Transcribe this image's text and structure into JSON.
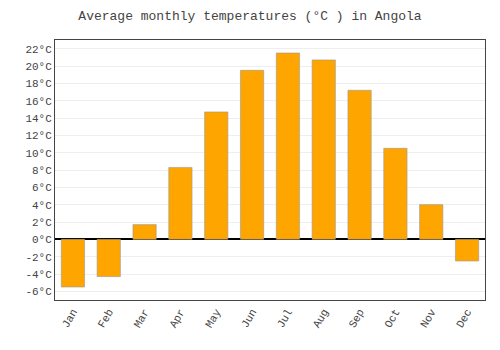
{
  "chart_data": {
    "type": "bar",
    "title": "Average monthly temperatures (°C ) in Angola",
    "categories": [
      "Jan",
      "Feb",
      "Mar",
      "Apr",
      "May",
      "Jun",
      "Jul",
      "Aug",
      "Sep",
      "Oct",
      "Nov",
      "Dec"
    ],
    "values": [
      -5.5,
      -4.3,
      1.7,
      8.3,
      14.7,
      19.5,
      21.5,
      20.7,
      17.2,
      10.5,
      4.0,
      -2.5
    ],
    "color": "#FFA500",
    "ylim": [
      -7,
      23
    ],
    "yticks": [
      {
        "value": -6,
        "label": "-6°C"
      },
      {
        "value": -4,
        "label": "-4°C"
      },
      {
        "value": -2,
        "label": "-2°C"
      },
      {
        "value": 0,
        "label": "0°C"
      },
      {
        "value": 2,
        "label": "2°C"
      },
      {
        "value": 4,
        "label": "4°C"
      },
      {
        "value": 6,
        "label": "6°C"
      },
      {
        "value": 8,
        "label": "8°C"
      },
      {
        "value": 10,
        "label": "10°C"
      },
      {
        "value": 12,
        "label": "12°C"
      },
      {
        "value": 14,
        "label": "14°C"
      },
      {
        "value": 16,
        "label": "16°C"
      },
      {
        "value": 18,
        "label": "18°C"
      },
      {
        "value": 20,
        "label": "20°C"
      },
      {
        "value": 22,
        "label": "22°C"
      }
    ],
    "grid": true
  }
}
